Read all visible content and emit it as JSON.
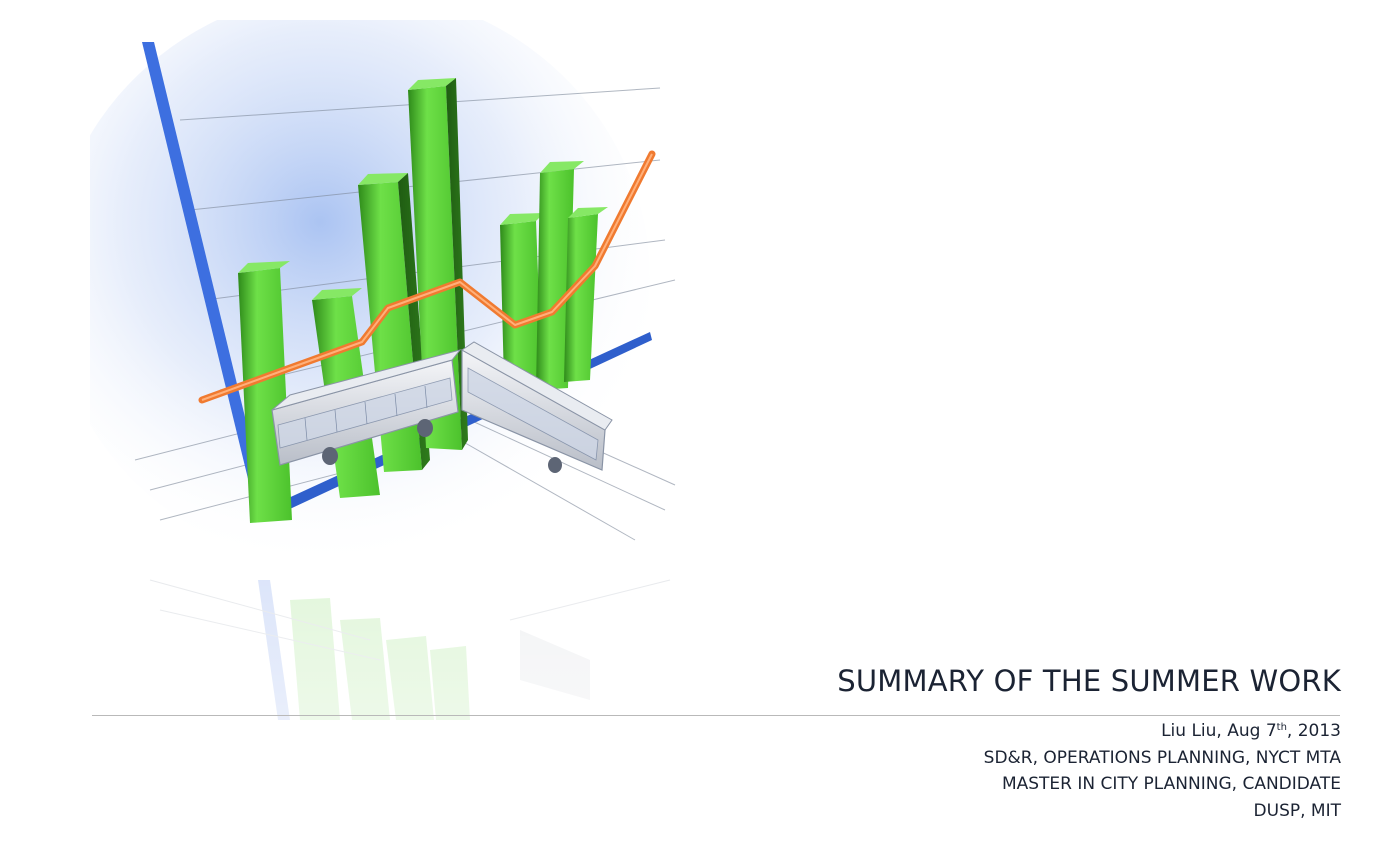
{
  "slide": {
    "title": "SUMMARY OF THE SUMMER WORK",
    "author_line": {
      "prefix": "Liu Liu, Aug 7",
      "superscript": "th",
      "suffix": ", 2013"
    },
    "lines": [
      "SD&R, OPERATIONS PLANNING, NYCT MTA",
      "MASTER IN CITY PLANNING, CANDIDATE",
      "DUSP, MIT"
    ]
  },
  "colors": {
    "text": "#1b2333",
    "bar_green": "#5fd23a",
    "axis_blue": "#3d6fe0",
    "trend_orange": "#f07a30",
    "rule": "#b9b9b9"
  }
}
